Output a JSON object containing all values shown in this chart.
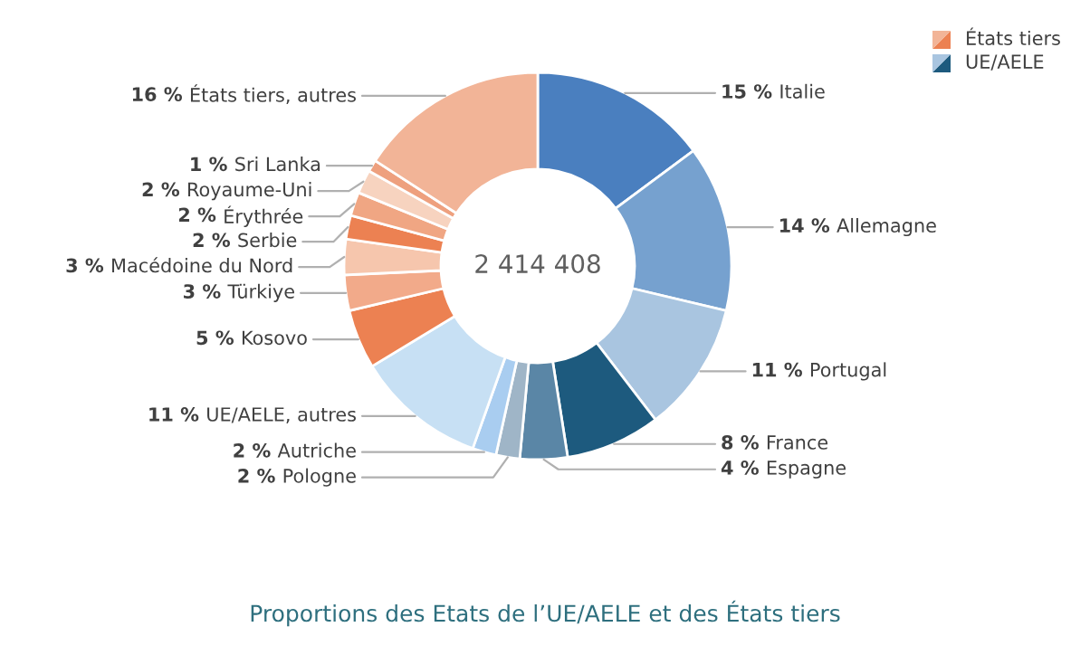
{
  "chart_data": {
    "type": "donut",
    "title": "Proportions des Etats de l’UE/AELE et des États tiers",
    "annotations": [
      "2 414 408",
      "États tiers",
      "UE/AELE"
    ],
    "categories": [
      "Italie",
      "Allemagne",
      "Portugal",
      "France",
      "Espagne",
      "Pologne",
      "Autriche",
      "UE/AELE, autres",
      "Kosovo",
      "Türkiye",
      "Macédoine du Nord",
      "Serbie",
      "Érythrée",
      "Royaume-Uni",
      "Sri Lanka",
      "États tiers, autres"
    ],
    "values": [
      15,
      14,
      11,
      8,
      4,
      2,
      2,
      11,
      5,
      3,
      3,
      2,
      2,
      2,
      1,
      16
    ],
    "value_labels": [
      "15 %",
      "14 %",
      "11 %",
      "8 %",
      "4 %",
      "2 %",
      "2 %",
      "11 %",
      "5 %",
      "3 %",
      "3 %",
      "2 %",
      "2 %",
      "2 %",
      "1 %",
      "16 %"
    ],
    "colors": [
      "#4a7fbf",
      "#76a1cf",
      "#a9c5e0",
      "#1d5a7e",
      "#5a86a6",
      "#9fb5c7",
      "#a9cdf0",
      "#c7e0f4",
      "#ec8152",
      "#f2aa8a",
      "#f6c6ad",
      "#ec8152",
      "#f0a683",
      "#f7d3bf",
      "#eea07e",
      "#f2b497"
    ]
  }
}
